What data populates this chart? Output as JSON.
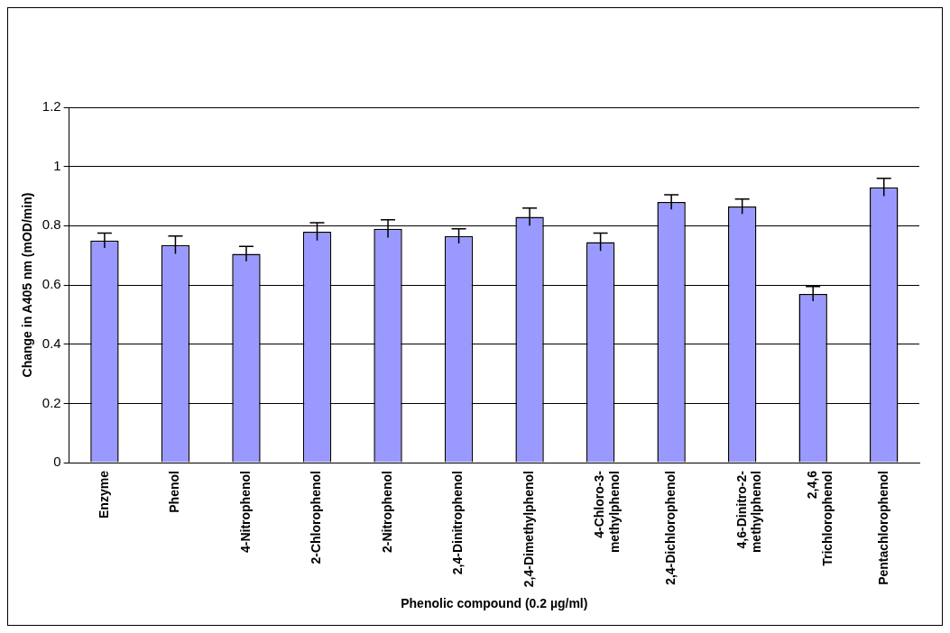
{
  "chart_data": {
    "type": "bar",
    "xlabel": "Phenolic compound (0.2 µg/ml)",
    "ylabel": "Change in A405 nm (mOD/min)",
    "categories": [
      "Enzyme",
      "Phenol",
      "4-Nitrophenol",
      "2-Chlorophenol",
      "2-Nitrophenol",
      "2,4-Dinitrophenol",
      "2,4-Dimethylphenol",
      "4-Chloro-3-methylphenol",
      "2,4-Dichlorophenol",
      "4,6-Dinitro-2-methylphenol",
      "2,4,6 Trichlorophenol",
      "Pentachlorophenol"
    ],
    "values": [
      0.75,
      0.735,
      0.705,
      0.78,
      0.79,
      0.765,
      0.83,
      0.745,
      0.88,
      0.865,
      0.57,
      0.93
    ],
    "errors": [
      0.025,
      0.03,
      0.025,
      0.03,
      0.03,
      0.025,
      0.03,
      0.03,
      0.025,
      0.025,
      0.025,
      0.03
    ],
    "color": "#9999ff",
    "ylim": [
      0,
      1.2
    ],
    "yticks": [
      0,
      0.2,
      0.4,
      0.6,
      0.8,
      1,
      1.2
    ],
    "grid": "y",
    "legend": false
  }
}
